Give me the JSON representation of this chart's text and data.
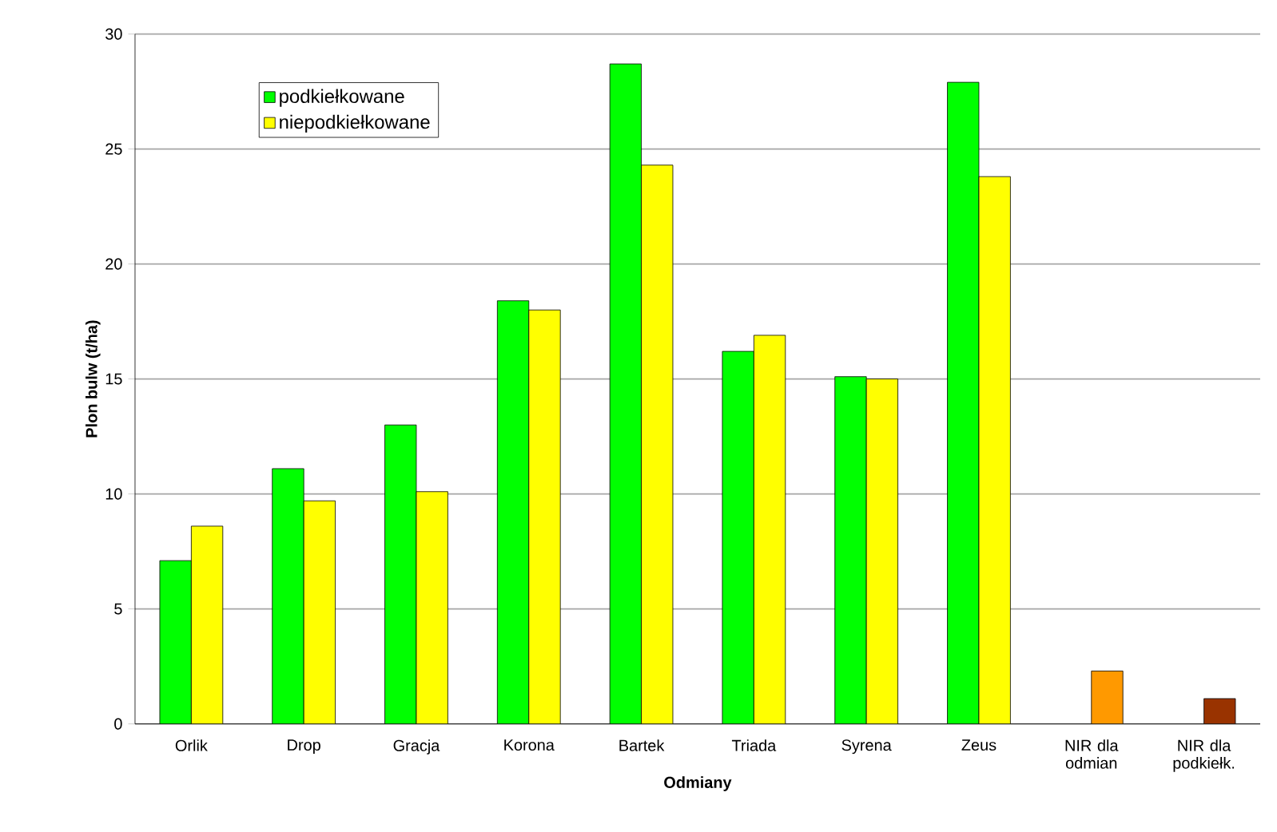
{
  "chart_data": {
    "type": "bar",
    "xlabel": "Odmiany",
    "ylabel": "Plon bulw  (t/ha)",
    "categories": [
      "Orlik",
      "Drop",
      "Gracja",
      "Korona",
      "Bartek",
      "Triada",
      "Syrena",
      "Zeus",
      "NIR dla odmian",
      "NIR dla podkiełk."
    ],
    "series": [
      {
        "name": "podkiełkowane",
        "color": "#00ff00",
        "values": [
          7.1,
          11.1,
          13.0,
          18.4,
          28.7,
          16.2,
          15.1,
          27.9,
          null,
          null
        ]
      },
      {
        "name": "niepodkiełkowane",
        "color": "#ffff00",
        "values": [
          8.6,
          9.7,
          10.1,
          18.0,
          24.3,
          16.9,
          15.0,
          23.8,
          null,
          null
        ]
      },
      {
        "colors": [
          null,
          null,
          null,
          null,
          null,
          null,
          null,
          null,
          "#ff9900",
          "#993300"
        ],
        "values": [
          null,
          null,
          null,
          null,
          null,
          null,
          null,
          null,
          2.3,
          1.1
        ]
      }
    ],
    "ylim": [
      0,
      30
    ],
    "yticks": [
      0,
      5,
      10,
      15,
      20,
      25,
      30
    ],
    "grid": "y",
    "legend": "top left"
  }
}
